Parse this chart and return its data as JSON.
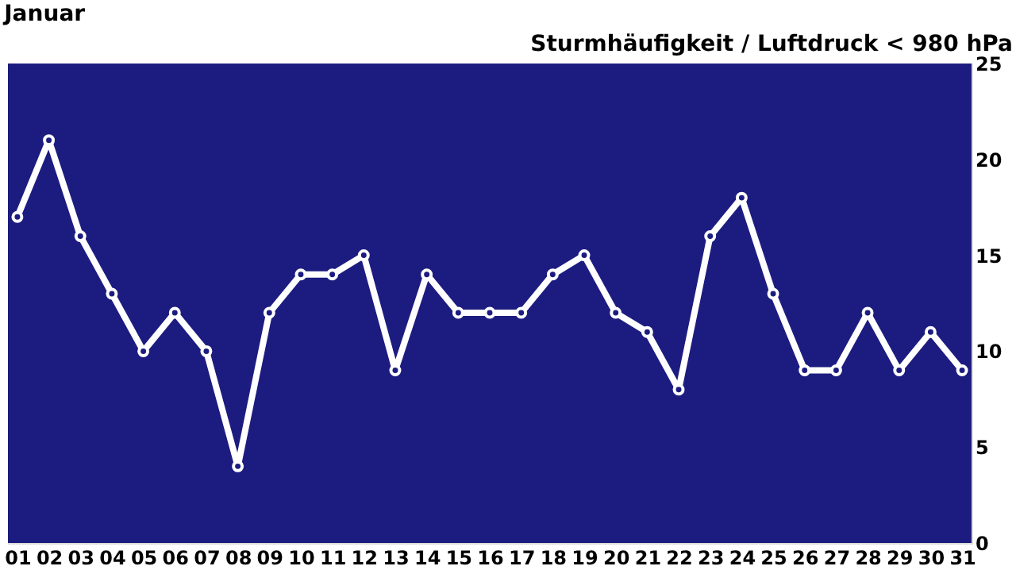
{
  "chart_data": {
    "type": "line",
    "title": "Januar",
    "subtitle": "Sturmhäufigkeit / Luftdruck < 980 hPa",
    "categories": [
      "01",
      "02",
      "03",
      "04",
      "05",
      "06",
      "07",
      "08",
      "09",
      "10",
      "11",
      "12",
      "13",
      "14",
      "15",
      "16",
      "17",
      "18",
      "19",
      "20",
      "21",
      "22",
      "23",
      "24",
      "25",
      "26",
      "27",
      "28",
      "29",
      "30",
      "31"
    ],
    "series": [
      {
        "color": "#ffffff",
        "values": [
          17,
          21,
          16,
          13,
          10,
          12,
          10,
          4,
          12,
          14,
          14,
          15,
          9,
          14,
          12,
          12,
          12,
          14,
          15,
          12,
          11,
          8,
          16,
          18,
          13,
          9,
          9,
          12,
          9,
          11,
          9
        ]
      }
    ],
    "ylim": [
      0,
      25
    ],
    "yticks": [
      0,
      5,
      10,
      15,
      20,
      25
    ],
    "marker": "circle",
    "line_style": "solid"
  }
}
